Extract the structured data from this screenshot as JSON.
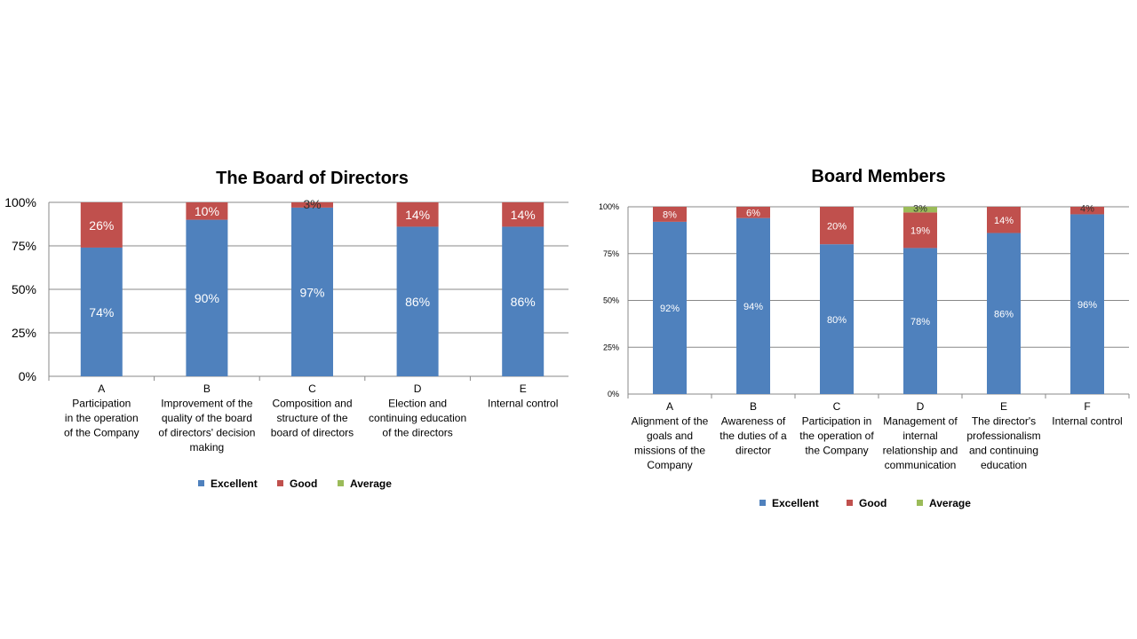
{
  "colors": {
    "Excellent": "#4F81BD",
    "Good": "#C0504D",
    "Average": "#9BBB59",
    "grid": "#888888",
    "axis": "#888888"
  },
  "chart_data": [
    {
      "type": "bar",
      "stacked": true,
      "title": "The Board of Directors",
      "ylim": [
        0,
        100
      ],
      "yticks": [
        "0%",
        "25%",
        "50%",
        "75%",
        "100%"
      ],
      "grid": true,
      "legend": "bottom",
      "categories": [
        {
          "letter": "A",
          "lines": [
            "Participation",
            "in the operation",
            "of the Company"
          ]
        },
        {
          "letter": "B",
          "lines": [
            "Improvement of the",
            "quality of the board",
            "of directors' decision",
            "making"
          ]
        },
        {
          "letter": "C",
          "lines": [
            "Composition and",
            "structure of the",
            "board of directors"
          ]
        },
        {
          "letter": "D",
          "lines": [
            "Election and",
            "continuing education",
            "of the directors"
          ]
        },
        {
          "letter": "E",
          "lines": [
            "Internal control"
          ]
        }
      ],
      "series": [
        {
          "name": "Excellent",
          "values": [
            74,
            90,
            97,
            86,
            86
          ],
          "labels": [
            "74%",
            "90%",
            "97%",
            "86%",
            "86%"
          ]
        },
        {
          "name": "Good",
          "values": [
            26,
            10,
            3,
            14,
            14
          ],
          "labels": [
            "26%",
            "10%",
            "3%",
            "14%",
            "14%"
          ]
        },
        {
          "name": "Average",
          "values": [
            0,
            0,
            0,
            0,
            0
          ],
          "labels": [
            "",
            "",
            "",
            "",
            ""
          ]
        }
      ]
    },
    {
      "type": "bar",
      "stacked": true,
      "title": "Board Members",
      "ylim": [
        0,
        100
      ],
      "yticks": [
        "0%",
        "25%",
        "50%",
        "75%",
        "100%"
      ],
      "grid": true,
      "legend": "bottom",
      "categories": [
        {
          "letter": "A",
          "lines": [
            "Alignment of the",
            "goals and",
            "missions of the",
            "Company"
          ]
        },
        {
          "letter": "B",
          "lines": [
            "Awareness of",
            "the duties of a",
            "director"
          ]
        },
        {
          "letter": "C",
          "lines": [
            "Participation in",
            "the operation of",
            "the Company"
          ]
        },
        {
          "letter": "D",
          "lines": [
            "Management of",
            "internal",
            "relationship and",
            "communication"
          ]
        },
        {
          "letter": "E",
          "lines": [
            "The director's",
            "professionalism",
            "and continuing",
            "education"
          ]
        },
        {
          "letter": "F",
          "lines": [
            "Internal control"
          ]
        }
      ],
      "series": [
        {
          "name": "Excellent",
          "values": [
            92,
            94,
            80,
            78,
            86,
            96
          ],
          "labels": [
            "92%",
            "94%",
            "80%",
            "78%",
            "86%",
            "96%"
          ]
        },
        {
          "name": "Good",
          "values": [
            8,
            6,
            20,
            19,
            14,
            4
          ],
          "labels": [
            "8%",
            "6%",
            "20%",
            "19%",
            "14%",
            "4%"
          ]
        },
        {
          "name": "Average",
          "values": [
            0,
            0,
            0,
            3,
            0,
            0
          ],
          "labels": [
            "",
            "",
            "",
            "3%",
            "",
            ""
          ]
        }
      ]
    }
  ]
}
